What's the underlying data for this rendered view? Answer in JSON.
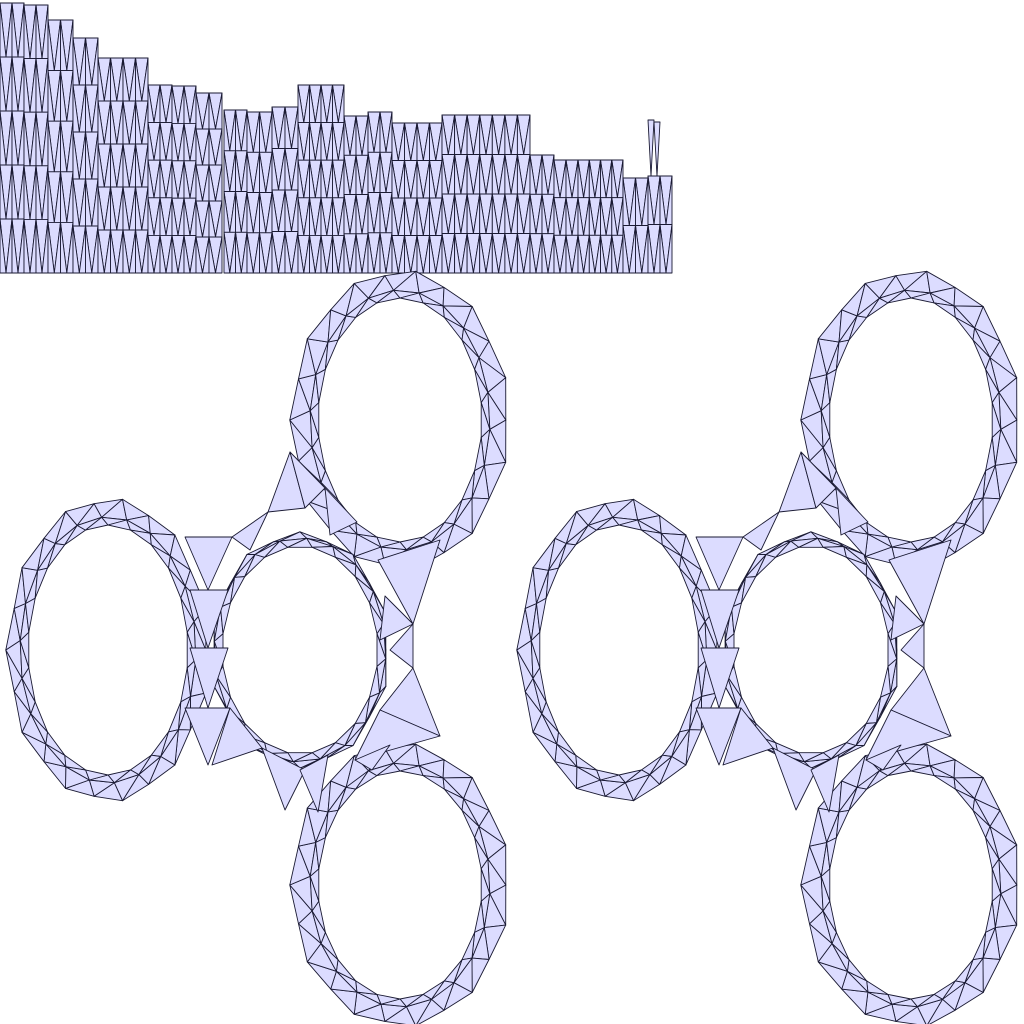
{
  "figure": {
    "panels": [
      {
        "name": "uv-strip-layout",
        "kind": "unwrapped-triangle-strips"
      },
      {
        "name": "mesh-view-left",
        "kind": "trefoil-ring-mesh"
      },
      {
        "name": "mesh-view-right",
        "kind": "trefoil-ring-mesh"
      }
    ],
    "colors": {
      "fill": "#dcdcff",
      "stroke": "#1a1a33",
      "background": "#ffffff"
    }
  }
}
